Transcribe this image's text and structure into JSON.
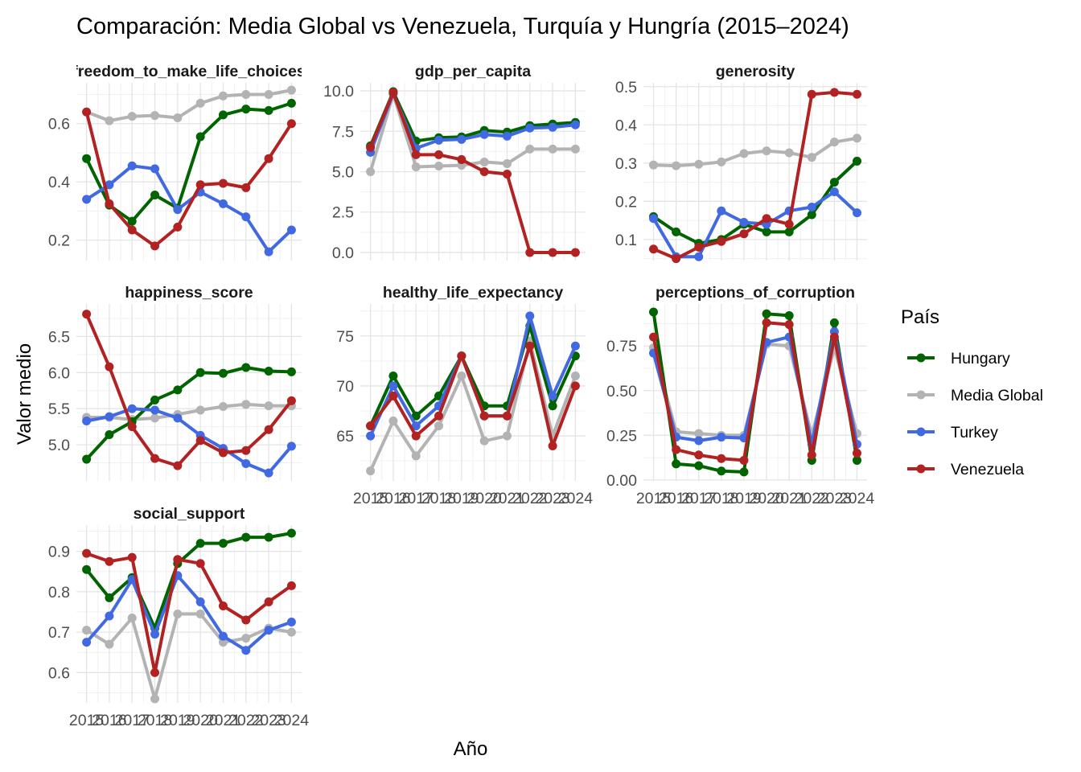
{
  "chart_data": {
    "type": "line",
    "title": "Comparación: Media Global vs Venezuela, Turquía y Hungría (2015–2024)",
    "xlabel": "Año",
    "ylabel": "Valor medio",
    "x": [
      2015,
      2016,
      2017,
      2018,
      2019,
      2020,
      2021,
      2022,
      2023,
      2024
    ],
    "x_tick_labels": [
      "2015",
      "2016",
      "2017",
      "2018",
      "2019",
      "2020",
      "2021",
      "2022",
      "2023",
      "2024"
    ],
    "legend": {
      "title": "País",
      "position": "right",
      "entries": [
        "Hungary",
        "Media Global",
        "Turkey",
        "Venezuela"
      ]
    },
    "colors": {
      "Hungary": "#006400",
      "Media Global": "#b3b3b3",
      "Turkey": "#4169e1",
      "Venezuela": "#b22222"
    },
    "grid": true,
    "panels": [
      {
        "label": "freedom_to_make_life_choices",
        "ylim": [
          0.13,
          0.74
        ],
        "yticks": [
          0.2,
          0.4,
          0.6
        ],
        "ytick_labels": [
          "0.2",
          "0.4",
          "0.6"
        ],
        "series": [
          {
            "name": "Media Global",
            "values": [
              0.64,
              0.61,
              0.625,
              0.628,
              0.62,
              0.67,
              0.695,
              0.7,
              0.7,
              0.715
            ]
          },
          {
            "name": "Hungary",
            "values": [
              0.48,
              0.32,
              0.265,
              0.355,
              0.31,
              0.555,
              0.63,
              0.65,
              0.645,
              0.67
            ]
          },
          {
            "name": "Turkey",
            "values": [
              0.34,
              0.39,
              0.455,
              0.445,
              0.305,
              0.365,
              0.325,
              0.28,
              0.16,
              0.235
            ]
          },
          {
            "name": "Venezuela",
            "values": [
              0.64,
              0.325,
              0.235,
              0.18,
              0.245,
              0.39,
              0.395,
              0.38,
              0.48,
              0.6
            ]
          }
        ]
      },
      {
        "label": "gdp_per_capita",
        "ylim": [
          -0.5,
          10.5
        ],
        "yticks": [
          0,
          2.5,
          5,
          7.5,
          10
        ],
        "ytick_labels": [
          "0.0",
          "2.5",
          "5.0",
          "7.5",
          "10.0"
        ],
        "series": [
          {
            "name": "Media Global",
            "values": [
              5.0,
              9.8,
              5.3,
              5.35,
              5.4,
              5.6,
              5.5,
              6.4,
              6.4,
              6.4
            ]
          },
          {
            "name": "Hungary",
            "values": [
              6.6,
              9.95,
              6.9,
              7.1,
              7.15,
              7.55,
              7.45,
              7.85,
              7.95,
              8.05
            ]
          },
          {
            "name": "Turkey",
            "values": [
              6.2,
              9.85,
              6.45,
              6.95,
              7.0,
              7.3,
              7.2,
              7.7,
              7.75,
              7.9
            ]
          },
          {
            "name": "Venezuela",
            "values": [
              6.5,
              9.9,
              6.05,
              6.05,
              5.75,
              5.0,
              4.85,
              0.0,
              0.0,
              0.0
            ]
          }
        ]
      },
      {
        "label": "generosity",
        "ylim": [
          0.045,
          0.51
        ],
        "yticks": [
          0.1,
          0.2,
          0.3,
          0.4,
          0.5
        ],
        "ytick_labels": [
          "0.1",
          "0.2",
          "0.3",
          "0.4",
          "0.5"
        ],
        "series": [
          {
            "name": "Media Global",
            "values": [
              0.295,
              0.293,
              0.297,
              0.303,
              0.325,
              0.332,
              0.327,
              0.315,
              0.355,
              0.365
            ]
          },
          {
            "name": "Hungary",
            "values": [
              0.16,
              0.12,
              0.09,
              0.1,
              0.14,
              0.12,
              0.12,
              0.165,
              0.25,
              0.305
            ]
          },
          {
            "name": "Turkey",
            "values": [
              0.155,
              0.055,
              0.055,
              0.175,
              0.145,
              0.14,
              0.175,
              0.185,
              0.225,
              0.17
            ]
          },
          {
            "name": "Venezuela",
            "values": [
              0.075,
              0.05,
              0.08,
              0.095,
              0.115,
              0.155,
              0.14,
              0.48,
              0.485,
              0.48
            ]
          }
        ]
      },
      {
        "label": "happiness_score",
        "ylim": [
          4.5,
          6.95
        ],
        "yticks": [
          5.0,
          5.5,
          6.0,
          6.5
        ],
        "ytick_labels": [
          "5.0",
          "5.5",
          "6.0",
          "6.5"
        ],
        "series": [
          {
            "name": "Media Global",
            "values": [
              5.38,
              5.38,
              5.35,
              5.37,
              5.42,
              5.48,
              5.53,
              5.56,
              5.54,
              5.54
            ]
          },
          {
            "name": "Hungary",
            "values": [
              4.8,
              5.14,
              5.32,
              5.62,
              5.76,
              6.0,
              5.99,
              6.07,
              6.02,
              6.01
            ]
          },
          {
            "name": "Turkey",
            "values": [
              5.33,
              5.39,
              5.5,
              5.48,
              5.37,
              5.13,
              4.95,
              4.74,
              4.61,
              4.98
            ]
          },
          {
            "name": "Venezuela",
            "values": [
              6.81,
              6.08,
              5.25,
              4.81,
              4.71,
              5.06,
              4.89,
              4.92,
              5.21,
              5.61
            ]
          }
        ]
      },
      {
        "label": "healthy_life_expectancy",
        "ylim": [
          60.5,
          78.2
        ],
        "yticks": [
          65,
          70,
          75
        ],
        "ytick_labels": [
          "65",
          "70",
          "75"
        ],
        "series": [
          {
            "name": "Media Global",
            "values": [
              61.5,
              66.5,
              63.0,
              66.0,
              71.0,
              64.5,
              65.0,
              74.5,
              65.0,
              71.0
            ]
          },
          {
            "name": "Hungary",
            "values": [
              66.0,
              71.0,
              67.0,
              69.0,
              73.0,
              68.0,
              68.0,
              76.0,
              68.0,
              73.0
            ]
          },
          {
            "name": "Turkey",
            "values": [
              65.0,
              70.0,
              66.0,
              68.0,
              73.0,
              67.0,
              67.0,
              77.0,
              69.0,
              74.0
            ]
          },
          {
            "name": "Venezuela",
            "values": [
              66.0,
              69.0,
              65.0,
              67.0,
              73.0,
              67.0,
              67.0,
              74.0,
              64.0,
              70.0
            ]
          }
        ]
      },
      {
        "label": "perceptions_of_corruption",
        "ylim": [
          -0.005,
          0.985
        ],
        "yticks": [
          0,
          0.25,
          0.5,
          0.75
        ],
        "ytick_labels": [
          "0.00",
          "0.25",
          "0.50",
          "0.75"
        ],
        "series": [
          {
            "name": "Media Global",
            "values": [
              0.74,
              0.27,
              0.26,
              0.25,
              0.25,
              0.76,
              0.75,
              0.25,
              0.74,
              0.26
            ]
          },
          {
            "name": "Hungary",
            "values": [
              0.94,
              0.09,
              0.08,
              0.05,
              0.045,
              0.93,
              0.92,
              0.11,
              0.88,
              0.11
            ]
          },
          {
            "name": "Turkey",
            "values": [
              0.71,
              0.24,
              0.22,
              0.24,
              0.235,
              0.77,
              0.8,
              0.2,
              0.83,
              0.2
            ]
          },
          {
            "name": "Venezuela",
            "values": [
              0.8,
              0.17,
              0.14,
              0.12,
              0.11,
              0.88,
              0.87,
              0.14,
              0.8,
              0.15
            ]
          }
        ]
      },
      {
        "label": "social_support",
        "ylim": [
          0.525,
          0.965
        ],
        "yticks": [
          0.6,
          0.7,
          0.8,
          0.9
        ],
        "ytick_labels": [
          "0.6",
          "0.7",
          "0.8",
          "0.9"
        ],
        "series": [
          {
            "name": "Media Global",
            "values": [
              0.705,
              0.67,
              0.735,
              0.535,
              0.745,
              0.745,
              0.675,
              0.685,
              0.71,
              0.7
            ]
          },
          {
            "name": "Hungary",
            "values": [
              0.855,
              0.785,
              0.835,
              0.71,
              0.87,
              0.92,
              0.92,
              0.935,
              0.935,
              0.945
            ]
          },
          {
            "name": "Turkey",
            "values": [
              0.675,
              0.74,
              0.83,
              0.695,
              0.84,
              0.775,
              0.69,
              0.655,
              0.705,
              0.725
            ]
          },
          {
            "name": "Venezuela",
            "values": [
              0.895,
              0.875,
              0.885,
              0.6,
              0.88,
              0.87,
              0.765,
              0.73,
              0.775,
              0.815
            ]
          }
        ]
      }
    ]
  }
}
